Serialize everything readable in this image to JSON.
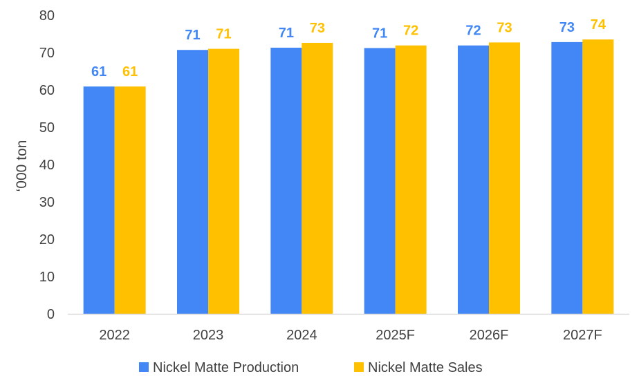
{
  "chart_data": {
    "type": "bar",
    "categories": [
      "2022",
      "2023",
      "2024",
      "2025F",
      "2026F",
      "2027F"
    ],
    "series": [
      {
        "name": "Nickel Matte Production",
        "values": [
          60.9,
          70.7,
          71.3,
          71.2,
          71.9,
          72.8
        ],
        "labels": [
          "61",
          "71",
          "71",
          "71",
          "72",
          "73"
        ],
        "color": "#4287F5"
      },
      {
        "name": "Nickel Matte Sales",
        "values": [
          60.9,
          71.0,
          72.6,
          71.9,
          72.7,
          73.5
        ],
        "labels": [
          "61",
          "71",
          "73",
          "72",
          "73",
          "74"
        ],
        "color": "#FFC000"
      }
    ],
    "ylabel": "‘000 ton",
    "xlabel": "",
    "ylim": [
      0,
      80
    ],
    "yticks": [
      "0",
      "10",
      "20",
      "30",
      "40",
      "50",
      "60",
      "70",
      "80"
    ],
    "grid": false,
    "legend_position": "bottom"
  }
}
